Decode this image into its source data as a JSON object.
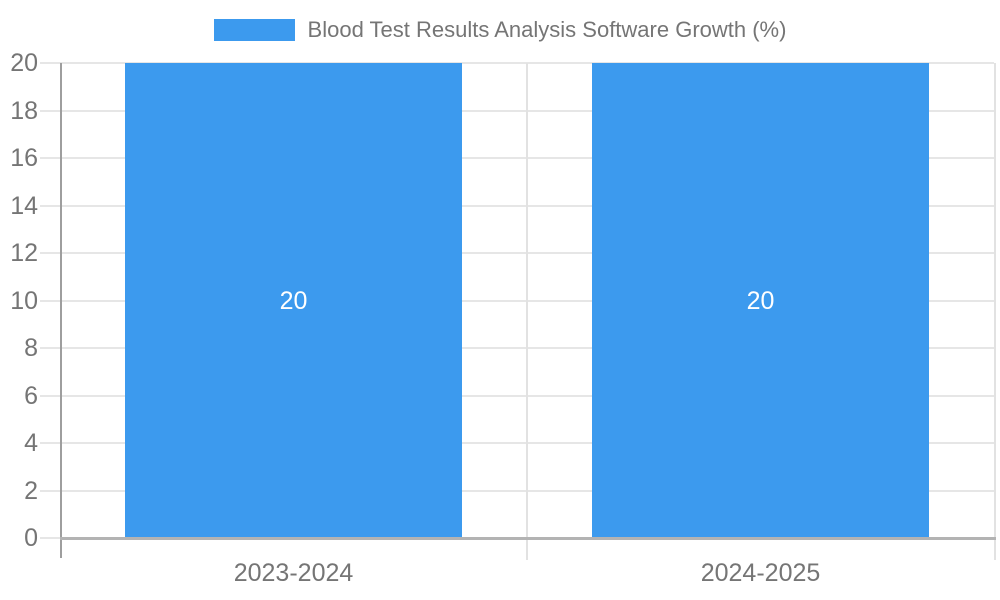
{
  "legend": {
    "swatch_color": "#3C9AEE",
    "label": "Blood Test Results Analysis Software Growth (%)"
  },
  "chart_data": {
    "type": "bar",
    "title": "Blood Test Results Analysis Software Growth (%)",
    "categories": [
      "2023-2024",
      "2024-2025"
    ],
    "values": [
      20,
      20
    ],
    "bar_value_labels": [
      "20",
      "20"
    ],
    "xlabel": "",
    "ylabel": "",
    "ylim": [
      0,
      20
    ],
    "yticks": [
      0,
      2,
      4,
      6,
      8,
      10,
      12,
      14,
      16,
      18,
      20
    ],
    "grid": true,
    "legend_position": "top",
    "colors": {
      "bar": "#3C9AEE",
      "bar_label_text": "#ffffff",
      "axis_text": "#757575",
      "gridline": "#e6e6e6",
      "y_axis_line": "#9e9e9e",
      "x_axis_line": "#b3b3b3",
      "divider": "#e2e2e2"
    }
  }
}
